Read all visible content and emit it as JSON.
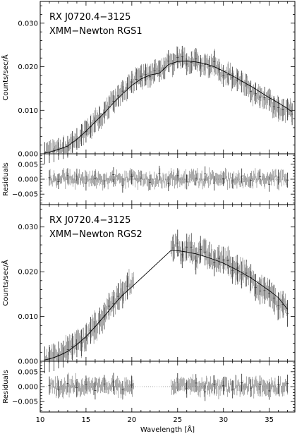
{
  "chart_data": [
    {
      "type": "line",
      "role": "spectrum",
      "annotation": [
        "RX J0720.4−3125",
        "XMM−Newton RGS1"
      ],
      "xlabel": "",
      "ylabel": "Counts/sec/Å",
      "xlim": [
        10,
        37.8
      ],
      "ylim": [
        0,
        0.035
      ],
      "yticks": [
        "0.000",
        "0.010",
        "0.020",
        "0.030"
      ],
      "series": [
        {
          "style": "data-with-errorbars",
          "x": [
            10.5,
            11,
            11.5,
            12,
            12.5,
            13,
            13.5,
            14,
            14.5,
            15,
            15.5,
            16,
            16.5,
            17,
            17.5,
            18,
            18.5,
            19,
            19.5,
            20,
            20.5,
            21,
            21.5,
            22,
            22.5,
            23,
            23.5,
            24,
            24.5,
            25,
            25.5,
            26,
            26.5,
            27,
            27.5,
            28,
            28.5,
            29,
            29.5,
            30,
            30.5,
            31,
            31.5,
            32,
            32.5,
            33,
            33.5,
            34,
            34.5,
            35,
            35.5,
            36,
            36.5,
            37,
            37.5
          ],
          "y": [
            0.0002,
            0.0004,
            0.0006,
            0.0011,
            0.0013,
            0.0016,
            0.0027,
            0.0034,
            0.0043,
            0.0051,
            0.0062,
            0.0075,
            0.0083,
            0.0095,
            0.0107,
            0.0121,
            0.0133,
            0.0144,
            0.0151,
            0.0165,
            0.0171,
            0.0178,
            0.0182,
            0.0177,
            0.0191,
            0.019,
            0.0196,
            0.0213,
            0.0206,
            0.0221,
            0.0223,
            0.0206,
            0.021,
            0.0218,
            0.0202,
            0.0205,
            0.02,
            0.0212,
            0.0193,
            0.0179,
            0.0182,
            0.0175,
            0.0169,
            0.0166,
            0.0158,
            0.0143,
            0.0139,
            0.013,
            0.0129,
            0.0124,
            0.0108,
            0.0106,
            0.0101,
            0.0102,
            0.0091
          ],
          "yerr": 0.0025
        },
        {
          "style": "model",
          "x": [
            10.5,
            11,
            12,
            13,
            14,
            15,
            16,
            17,
            18,
            19,
            20,
            21,
            22,
            23,
            24,
            25,
            26,
            27,
            28,
            29,
            30,
            31,
            32,
            33,
            34,
            35,
            36,
            37,
            37.5
          ],
          "y": [
            0.0002,
            0.0004,
            0.001,
            0.0018,
            0.0033,
            0.0052,
            0.0073,
            0.0094,
            0.0117,
            0.0138,
            0.0157,
            0.0172,
            0.0181,
            0.0185,
            0.0205,
            0.0212,
            0.0213,
            0.0211,
            0.0207,
            0.02,
            0.019,
            0.0179,
            0.0167,
            0.0155,
            0.0142,
            0.0129,
            0.0117,
            0.0104,
            0.0096
          ]
        }
      ]
    },
    {
      "type": "scatter",
      "role": "residuals",
      "annotation": [],
      "xlabel": "",
      "ylabel": "Residuals",
      "xlim": [
        10,
        37.8
      ],
      "ylim": [
        -0.0085,
        0.0085
      ],
      "yticks": [
        "0.005",
        "0.000",
        "−0.005"
      ],
      "series": [
        {
          "style": "residuals",
          "x": [
            11,
            12,
            13,
            14,
            15,
            16,
            17,
            18,
            19,
            20,
            21,
            22,
            23,
            24,
            25,
            26,
            27,
            28,
            29,
            30,
            31,
            32,
            33,
            34,
            35,
            36,
            37
          ],
          "y": [
            0.0005,
            -0.0008,
            0.0012,
            0.001,
            -0.0013,
            0.0003,
            -0.0006,
            0.0015,
            -0.002,
            0.0008,
            0.0004,
            -0.0011,
            0.002,
            -0.0015,
            0.0012,
            -0.0009,
            0.0004,
            0.0018,
            -0.0013,
            0.0002,
            -0.0006,
            0.0011,
            -0.0004,
            0.0009,
            -0.0017,
            0.0007,
            -0.0003
          ],
          "yerr": 0.0025
        }
      ]
    },
    {
      "type": "line",
      "role": "spectrum",
      "annotation": [
        "RX J0720.4−3125",
        "XMM−Newton RGS2"
      ],
      "xlabel": "",
      "ylabel": "Counts/sec/Å",
      "xlim": [
        10,
        37.8
      ],
      "ylim": [
        0,
        0.035
      ],
      "yticks": [
        "0.000",
        "0.010",
        "0.020",
        "0.030"
      ],
      "series": [
        {
          "style": "data-with-errorbars",
          "x": [
            10.5,
            11,
            11.5,
            12,
            12.5,
            13,
            13.5,
            14,
            14.5,
            15,
            15.5,
            16,
            16.5,
            17,
            17.5,
            18,
            18.5,
            19,
            19.5,
            24.5,
            25,
            25.5,
            26,
            26.5,
            27,
            27.5,
            28,
            28.5,
            29,
            29.5,
            30,
            30.5,
            31,
            31.5,
            32,
            32.5,
            33,
            33.5,
            34,
            34.5,
            35,
            35.5,
            36,
            36.5,
            37
          ],
          "y": [
            0.0003,
            0.0006,
            0.0008,
            0.0014,
            0.0016,
            0.0026,
            0.0032,
            0.0039,
            0.0041,
            0.0052,
            0.0069,
            0.0078,
            0.009,
            0.0101,
            0.0123,
            0.0129,
            0.0145,
            0.0148,
            0.0168,
            0.0253,
            0.0264,
            0.0238,
            0.0255,
            0.0255,
            0.0224,
            0.025,
            0.0244,
            0.0237,
            0.022,
            0.023,
            0.0226,
            0.0225,
            0.0203,
            0.0208,
            0.0193,
            0.0197,
            0.0187,
            0.0165,
            0.0157,
            0.0158,
            0.0152,
            0.0141,
            0.0124,
            0.0127,
            0.0107
          ],
          "yerr": 0.003
        },
        {
          "style": "model",
          "x": [
            10.5,
            11,
            12,
            13,
            14,
            15,
            16,
            17,
            18,
            19,
            20,
            24.3,
            25,
            26,
            27,
            28,
            29,
            30,
            31,
            32,
            33,
            34,
            35,
            36,
            37
          ],
          "y": [
            0.0003,
            0.0005,
            0.0012,
            0.0022,
            0.0037,
            0.0055,
            0.0077,
            0.0101,
            0.0125,
            0.0148,
            0.0166,
            0.0248,
            0.0247,
            0.0244,
            0.024,
            0.0234,
            0.0227,
            0.0219,
            0.0209,
            0.0198,
            0.0186,
            0.0172,
            0.0158,
            0.0142,
            0.0116
          ]
        }
      ]
    },
    {
      "type": "scatter",
      "role": "residuals",
      "annotation": [],
      "xlabel": "Wavelength [Å]",
      "ylabel": "Residuals",
      "xlim": [
        10,
        37.8
      ],
      "ylim": [
        -0.0085,
        0.0085
      ],
      "yticks": [
        "0.005",
        "0.000",
        "−0.005"
      ],
      "xticks": [
        "10",
        "15",
        "20",
        "25",
        "30",
        "35"
      ],
      "series": [
        {
          "style": "residuals",
          "x": [
            11,
            12,
            13,
            14,
            15,
            16,
            17,
            18,
            19,
            20,
            25,
            26,
            27,
            28,
            29,
            30,
            31,
            32,
            33,
            34,
            35,
            36,
            37
          ],
          "y": [
            0.0004,
            -0.0009,
            0.0011,
            -0.0004,
            0.0007,
            -0.0013,
            0.0009,
            0.0016,
            -0.0011,
            0.0005,
            0.0015,
            -0.0007,
            0.0012,
            -0.0018,
            0.0008,
            0.0003,
            -0.0009,
            0.0013,
            -0.0005,
            0.0007,
            -0.0014,
            0.0006,
            0.001
          ],
          "yerr": 0.003
        }
      ]
    }
  ]
}
